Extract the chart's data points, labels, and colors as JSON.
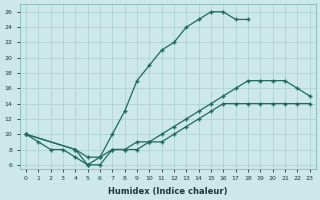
{
  "xlabel": "Humidex (Indice chaleur)",
  "ylabel": "",
  "bg_color": "#cce8e8",
  "grid_color": "#aacfcf",
  "line_color": "#1e6b5e",
  "xlim": [
    -0.5,
    23.5
  ],
  "ylim": [
    5.5,
    27
  ],
  "yticks": [
    6,
    8,
    10,
    12,
    14,
    16,
    18,
    20,
    22,
    24,
    26
  ],
  "xticks": [
    0,
    1,
    2,
    3,
    4,
    5,
    6,
    7,
    8,
    9,
    10,
    11,
    12,
    13,
    14,
    15,
    16,
    17,
    18,
    19,
    20,
    21,
    22,
    23
  ],
  "curve1_x": [
    0,
    1,
    2,
    3,
    4,
    5,
    6,
    7,
    8,
    9,
    10,
    11,
    12,
    13,
    14,
    15,
    16,
    17,
    18
  ],
  "curve1_y": [
    10,
    9,
    8,
    8,
    7,
    6,
    7,
    10,
    13,
    17,
    19,
    21,
    22,
    24,
    25,
    26,
    26,
    25,
    25
  ],
  "curve2_x": [
    0,
    4,
    5,
    6,
    7,
    8,
    9,
    10,
    11,
    12,
    13,
    14,
    15,
    16,
    17,
    18,
    19,
    20,
    21,
    22,
    23
  ],
  "curve2_y": [
    10,
    8,
    7,
    7,
    8,
    8,
    9,
    9,
    10,
    11,
    12,
    13,
    14,
    15,
    16,
    17,
    17,
    17,
    17,
    16,
    15
  ],
  "curve3_x": [
    0,
    4,
    5,
    6,
    7,
    8,
    9,
    10,
    11,
    12,
    13,
    14,
    15,
    16,
    17,
    18,
    19,
    20,
    21,
    22,
    23
  ],
  "curve3_y": [
    10,
    8,
    6,
    6,
    8,
    8,
    8,
    9,
    9,
    10,
    11,
    12,
    13,
    14,
    14,
    14,
    14,
    14,
    14,
    14,
    14
  ]
}
